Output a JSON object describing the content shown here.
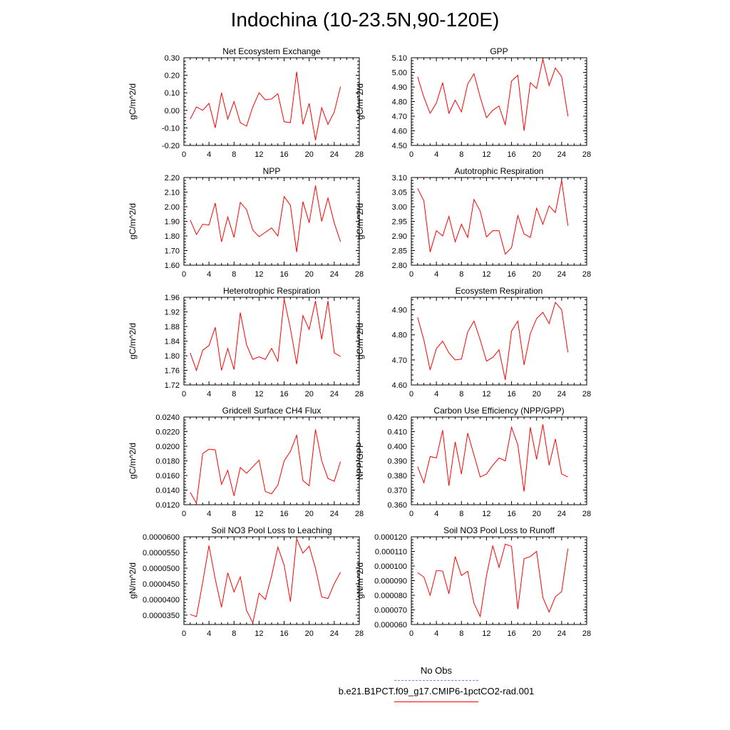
{
  "title": "Indochina (10-23.5N,90-120E)",
  "legend": {
    "items": [
      {
        "label": "No Obs",
        "color": "#8080ff",
        "style": "dashed"
      },
      {
        "label": "b.e21.B1PCT.f09_g17.CMIP6-1pctCO2-rad.001",
        "color": "#ff0000",
        "style": "solid"
      }
    ]
  },
  "chart_data": [
    {
      "type": "line",
      "title": "Net Ecosystem Exchange",
      "ylabel": "gC/m^2/d",
      "xlim": [
        0,
        28
      ],
      "xticks": [
        "0",
        "4",
        "8",
        "12",
        "16",
        "20",
        "24",
        "28"
      ],
      "ylim": [
        -0.2,
        0.3
      ],
      "yticks": [
        "-0.20",
        "-0.10",
        "0.00",
        "0.10",
        "0.20",
        "0.30"
      ],
      "series": [
        {
          "color": "#ff0000",
          "x": [
            1,
            2,
            3,
            4,
            5,
            6,
            7,
            8,
            9,
            10,
            11,
            12,
            13,
            14,
            15,
            16,
            17,
            18,
            19,
            20,
            21,
            22,
            23,
            24,
            25
          ],
          "values": [
            -0.05,
            0.02,
            0.0,
            0.04,
            -0.1,
            0.1,
            -0.05,
            0.05,
            -0.07,
            -0.09,
            0.02,
            0.1,
            0.06,
            0.065,
            0.095,
            -0.065,
            -0.07,
            0.22,
            -0.08,
            0.04,
            -0.17,
            0.015,
            -0.08,
            -0.01,
            0.135
          ]
        }
      ]
    },
    {
      "type": "line",
      "title": "GPP",
      "ylabel": "gC/m^2/d",
      "xlim": [
        0,
        28
      ],
      "xticks": [
        "0",
        "4",
        "8",
        "12",
        "16",
        "20",
        "24",
        "28"
      ],
      "ylim": [
        4.5,
        5.1
      ],
      "yticks": [
        "4.50",
        "4.60",
        "4.70",
        "4.80",
        "4.90",
        "5.00",
        "5.10"
      ],
      "series": [
        {
          "color": "#ff0000",
          "x": [
            1,
            2,
            3,
            4,
            5,
            6,
            7,
            8,
            9,
            10,
            11,
            12,
            13,
            14,
            15,
            16,
            17,
            18,
            19,
            20,
            21,
            22,
            23,
            24,
            25
          ],
          "values": [
            4.97,
            4.83,
            4.72,
            4.79,
            4.93,
            4.72,
            4.81,
            4.73,
            4.92,
            4.99,
            4.83,
            4.69,
            4.74,
            4.77,
            4.64,
            4.94,
            4.98,
            4.6,
            4.93,
            4.89,
            5.09,
            4.91,
            5.03,
            4.97,
            4.7
          ]
        }
      ]
    },
    {
      "type": "line",
      "title": "NPP",
      "ylabel": "gC/m^2/d",
      "xlim": [
        0,
        28
      ],
      "xticks": [
        "0",
        "4",
        "8",
        "12",
        "16",
        "20",
        "24",
        "28"
      ],
      "ylim": [
        1.6,
        2.2
      ],
      "yticks": [
        "1.60",
        "1.70",
        "1.80",
        "1.90",
        "2.00",
        "2.10",
        "2.20"
      ],
      "series": [
        {
          "color": "#ff0000",
          "x": [
            1,
            2,
            3,
            4,
            5,
            6,
            7,
            8,
            9,
            10,
            11,
            12,
            13,
            14,
            15,
            16,
            17,
            18,
            19,
            20,
            21,
            22,
            23,
            24,
            25
          ],
          "values": [
            1.91,
            1.81,
            1.88,
            1.875,
            2.025,
            1.76,
            1.93,
            1.79,
            2.03,
            1.98,
            1.84,
            1.795,
            1.825,
            1.855,
            1.8,
            2.07,
            2.01,
            1.69,
            2.035,
            1.89,
            2.145,
            1.9,
            2.06,
            1.89,
            1.76
          ]
        }
      ]
    },
    {
      "type": "line",
      "title": "Autotrophic Respiration",
      "ylabel": "gC/m^2/d",
      "xlim": [
        0,
        28
      ],
      "xticks": [
        "0",
        "4",
        "8",
        "12",
        "16",
        "20",
        "24",
        "28"
      ],
      "ylim": [
        2.8,
        3.1
      ],
      "yticks": [
        "2.80",
        "2.85",
        "2.90",
        "2.95",
        "3.00",
        "3.05",
        "3.10"
      ],
      "series": [
        {
          "color": "#ff0000",
          "x": [
            1,
            2,
            3,
            4,
            5,
            6,
            7,
            8,
            9,
            10,
            11,
            12,
            13,
            14,
            15,
            16,
            17,
            18,
            19,
            20,
            21,
            22,
            23,
            24,
            25
          ],
          "values": [
            3.063,
            3.02,
            2.845,
            2.918,
            2.9,
            2.967,
            2.88,
            2.94,
            2.895,
            3.025,
            2.985,
            2.897,
            2.918,
            2.918,
            2.838,
            2.86,
            2.97,
            2.907,
            2.895,
            2.995,
            2.94,
            3.003,
            2.98,
            3.09,
            2.935
          ]
        }
      ]
    },
    {
      "type": "line",
      "title": "Heterotrophic Respiration",
      "ylabel": "gC/m^2/d",
      "xlim": [
        0,
        28
      ],
      "xticks": [
        "0",
        "4",
        "8",
        "12",
        "16",
        "20",
        "24",
        "28"
      ],
      "ylim": [
        1.72,
        1.96
      ],
      "yticks": [
        "1.72",
        "1.76",
        "1.80",
        "1.84",
        "1.88",
        "1.92",
        "1.96"
      ],
      "series": [
        {
          "color": "#ff0000",
          "x": [
            1,
            2,
            3,
            4,
            5,
            6,
            7,
            8,
            9,
            10,
            11,
            12,
            13,
            14,
            15,
            16,
            17,
            18,
            19,
            20,
            21,
            22,
            23,
            24,
            25
          ],
          "values": [
            1.808,
            1.76,
            1.815,
            1.828,
            1.878,
            1.76,
            1.82,
            1.762,
            1.918,
            1.83,
            1.79,
            1.797,
            1.79,
            1.82,
            1.785,
            1.955,
            1.875,
            1.777,
            1.91,
            1.872,
            1.95,
            1.845,
            1.95,
            1.808,
            1.798
          ]
        }
      ]
    },
    {
      "type": "line",
      "title": "Ecosystem Respiration",
      "ylabel": "gC/m^2/d",
      "xlim": [
        0,
        28
      ],
      "xticks": [
        "0",
        "4",
        "8",
        "12",
        "16",
        "20",
        "24",
        "28"
      ],
      "ylim": [
        4.6,
        4.95
      ],
      "yticks": [
        "4.60",
        "4.70",
        "4.80",
        "4.90"
      ],
      "series": [
        {
          "color": "#ff0000",
          "x": [
            1,
            2,
            3,
            4,
            5,
            6,
            7,
            8,
            9,
            10,
            11,
            12,
            13,
            14,
            15,
            16,
            17,
            18,
            19,
            20,
            21,
            22,
            23,
            24,
            25
          ],
          "values": [
            4.87,
            4.78,
            4.66,
            4.745,
            4.775,
            4.728,
            4.7,
            4.703,
            4.812,
            4.855,
            4.78,
            4.695,
            4.71,
            4.74,
            4.62,
            4.815,
            4.855,
            4.68,
            4.805,
            4.865,
            4.89,
            4.845,
            4.93,
            4.9,
            4.73
          ]
        }
      ]
    },
    {
      "type": "line",
      "title": "Gridcell Surface CH4 Flux",
      "ylabel": "gC/m^2/d",
      "xlim": [
        0,
        28
      ],
      "xticks": [
        "0",
        "4",
        "8",
        "12",
        "16",
        "20",
        "24",
        "28"
      ],
      "ylim": [
        0.012,
        0.024
      ],
      "yticks": [
        "0.0120",
        "0.0140",
        "0.0160",
        "0.0180",
        "0.0200",
        "0.0220",
        "0.0240"
      ],
      "series": [
        {
          "color": "#ff0000",
          "x": [
            1,
            2,
            3,
            4,
            5,
            6,
            7,
            8,
            9,
            10,
            11,
            12,
            13,
            14,
            15,
            16,
            17,
            18,
            19,
            20,
            21,
            22,
            23,
            24,
            25
          ],
          "values": [
            0.0137,
            0.0122,
            0.019,
            0.0196,
            0.0195,
            0.0148,
            0.0167,
            0.0132,
            0.0171,
            0.0163,
            0.0172,
            0.0181,
            0.0138,
            0.0135,
            0.0147,
            0.018,
            0.0193,
            0.0215,
            0.0153,
            0.0146,
            0.0223,
            0.018,
            0.0156,
            0.0152,
            0.0179
          ]
        }
      ]
    },
    {
      "type": "line",
      "title": "Carbon Use Efficiency (NPP/GPP)",
      "ylabel": "NPP/GPP",
      "xlim": [
        0,
        28
      ],
      "xticks": [
        "0",
        "4",
        "8",
        "12",
        "16",
        "20",
        "24",
        "28"
      ],
      "ylim": [
        0.36,
        0.42
      ],
      "yticks": [
        "0.360",
        "0.370",
        "0.380",
        "0.390",
        "0.400",
        "0.410",
        "0.420"
      ],
      "series": [
        {
          "color": "#ff0000",
          "x": [
            1,
            2,
            3,
            4,
            5,
            6,
            7,
            8,
            9,
            10,
            11,
            12,
            13,
            14,
            15,
            16,
            17,
            18,
            19,
            20,
            21,
            22,
            23,
            24,
            25
          ],
          "values": [
            0.386,
            0.375,
            0.393,
            0.392,
            0.411,
            0.373,
            0.403,
            0.381,
            0.409,
            0.394,
            0.379,
            0.381,
            0.387,
            0.392,
            0.39,
            0.413,
            0.401,
            0.369,
            0.413,
            0.391,
            0.415,
            0.387,
            0.405,
            0.381,
            0.379
          ]
        }
      ]
    },
    {
      "type": "line",
      "title": "Soil NO3 Pool Loss to Leaching",
      "ylabel": "gN/m^2/d",
      "xlim": [
        0,
        28
      ],
      "xticks": [
        "0",
        "4",
        "8",
        "12",
        "16",
        "20",
        "24",
        "28"
      ],
      "ylim": [
        3.2e-05,
        6e-05
      ],
      "yticks": [
        "0.0000350",
        "0.0000400",
        "0.0000450",
        "0.0000500",
        "0.0000550",
        "0.0000600"
      ],
      "series": [
        {
          "color": "#ff0000",
          "x": [
            1,
            2,
            3,
            4,
            5,
            6,
            7,
            8,
            9,
            10,
            11,
            12,
            13,
            14,
            15,
            16,
            17,
            18,
            19,
            20,
            21,
            22,
            23,
            24,
            25
          ],
          "values": [
            3.52e-05,
            3.45e-05,
            4.55e-05,
            5.72e-05,
            4.65e-05,
            3.75e-05,
            4.85e-05,
            4.24e-05,
            4.72e-05,
            3.65e-05,
            3.25e-05,
            4.2e-05,
            4e-05,
            4.75e-05,
            5.67e-05,
            5.1e-05,
            3.93e-05,
            5.93e-05,
            5.48e-05,
            5.7e-05,
            5e-05,
            4.08e-05,
            4.03e-05,
            4.5e-05,
            4.87e-05
          ]
        }
      ]
    },
    {
      "type": "line",
      "title": "Soil NO3 Pool Loss to Runoff",
      "ylabel": "gN/m^2/d",
      "xlim": [
        0,
        28
      ],
      "xticks": [
        "0",
        "4",
        "8",
        "12",
        "16",
        "20",
        "24",
        "28"
      ],
      "ylim": [
        6e-05,
        0.00012
      ],
      "yticks": [
        "0.000060",
        "0.000070",
        "0.000080",
        "0.000090",
        "0.000100",
        "0.000110",
        "0.000120"
      ],
      "series": [
        {
          "color": "#ff0000",
          "x": [
            1,
            2,
            3,
            4,
            5,
            6,
            7,
            8,
            9,
            10,
            11,
            12,
            13,
            14,
            15,
            16,
            17,
            18,
            19,
            20,
            21,
            22,
            23,
            24,
            25
          ],
          "values": [
            9.55e-05,
            9.25e-05,
            8e-05,
            9.7e-05,
            9.65e-05,
            8.1e-05,
            0.0001065,
            9.35e-05,
            9.65e-05,
            7.45e-05,
            6.55e-05,
            9.35e-05,
            0.000114,
            9.9e-05,
            0.000115,
            0.0001135,
            7.05e-05,
            0.000105,
            0.0001065,
            0.00011,
            7.85e-05,
            6.85e-05,
            7.9e-05,
            8.25e-05,
            0.000112
          ]
        }
      ]
    }
  ]
}
